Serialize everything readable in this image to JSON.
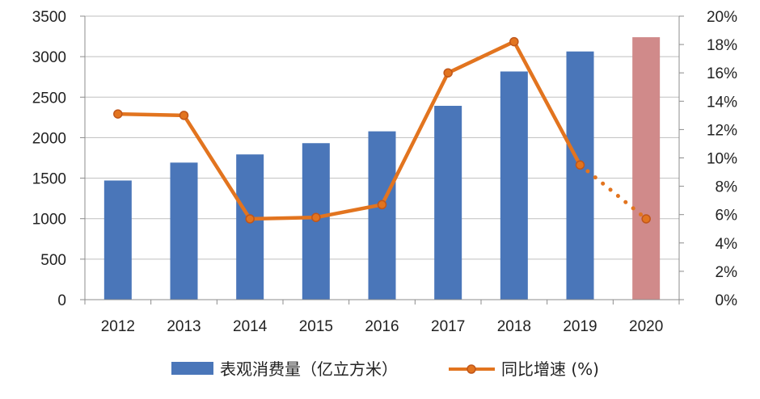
{
  "chart_data": {
    "type": "bar+line",
    "categories": [
      "2012",
      "2013",
      "2014",
      "2015",
      "2016",
      "2017",
      "2018",
      "2019",
      "2020"
    ],
    "series": [
      {
        "name": "表观消费量（亿立方米）",
        "type": "bar",
        "axis": "left",
        "values": [
          1471,
          1692,
          1793,
          1932,
          2078,
          2393,
          2817,
          3064,
          3240
        ],
        "color": "#4a76b9",
        "highlight_color": "#d08a8a",
        "highlight_index": 8
      },
      {
        "name": "同比增速 (%)",
        "type": "line",
        "axis": "right",
        "values": [
          13.1,
          13.0,
          5.7,
          5.8,
          6.7,
          16.0,
          18.2,
          9.5,
          5.7
        ],
        "color": "#e2741f",
        "dotted_from_index": 7
      }
    ],
    "y_left": {
      "ylim": [
        0,
        3500
      ],
      "ticks": [
        "0",
        "500",
        "1000",
        "1500",
        "2000",
        "2500",
        "3000",
        "3500"
      ]
    },
    "y_right": {
      "ylim": [
        0,
        20
      ],
      "ticks": [
        "0%",
        "2%",
        "4%",
        "6%",
        "8%",
        "10%",
        "12%",
        "14%",
        "16%",
        "18%",
        "20%"
      ]
    },
    "grid": true,
    "legend_position": "bottom"
  }
}
